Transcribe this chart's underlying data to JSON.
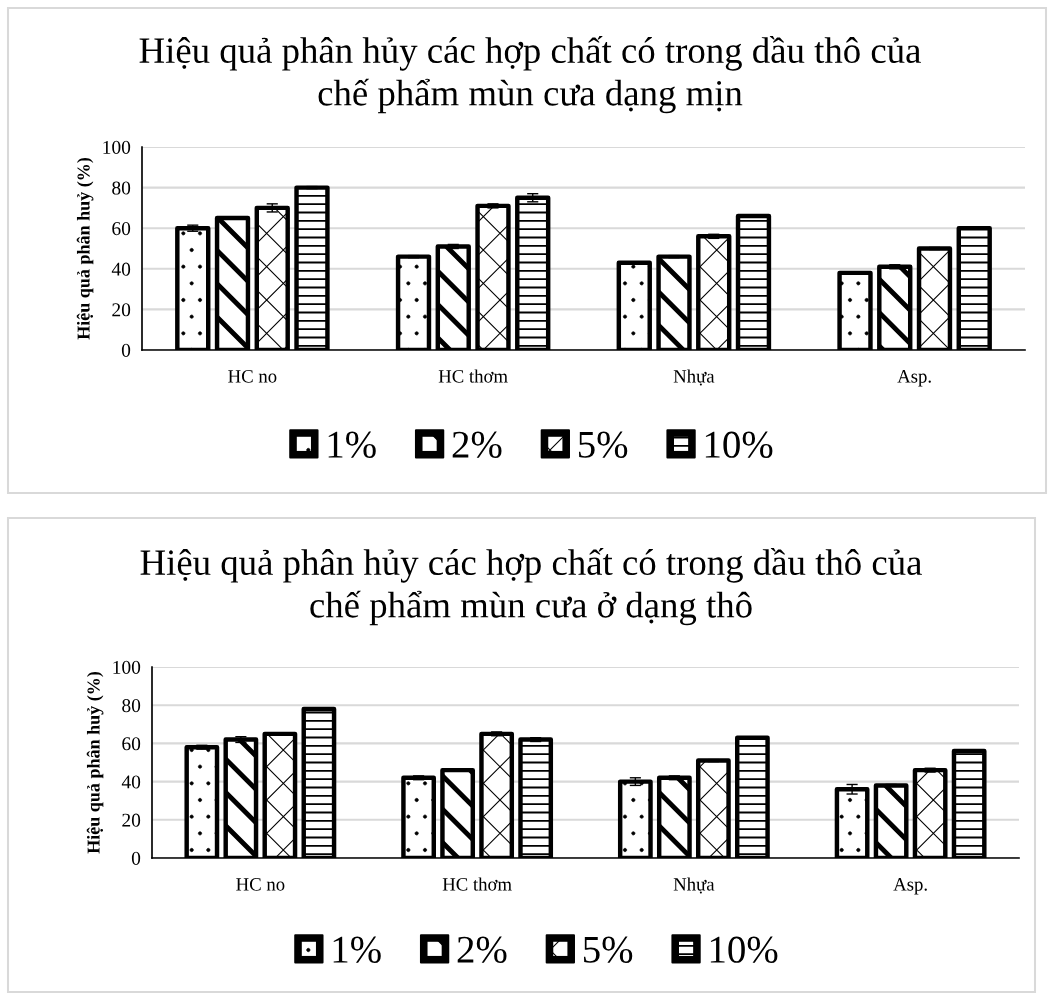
{
  "chart_data": [
    {
      "type": "bar",
      "title": "Hiệu quả phân hủy các hợp chất có trong dầu thô của\nchế phẩm mùn cưa dạng mịn",
      "ylabel": "Hiệu quả phân huỷ (%)",
      "categories": [
        "HC no",
        "HC thơm",
        "Nhựa",
        "Asp."
      ],
      "series": [
        {
          "name": "1%",
          "color": "#000000",
          "values": [
            60,
            46,
            43,
            38
          ],
          "errors": [
            1.5,
            0.5,
            0.5,
            0.5
          ]
        },
        {
          "name": "2%",
          "color": "#000000",
          "values": [
            65,
            51,
            46,
            41
          ],
          "errors": [
            0.5,
            1,
            0.5,
            1
          ]
        },
        {
          "name": "5%",
          "color": "#000000",
          "values": [
            70,
            71,
            56,
            50
          ],
          "errors": [
            2,
            1,
            1,
            0.5
          ]
        },
        {
          "name": "10%",
          "color": "#000000",
          "values": [
            80,
            75,
            66,
            60
          ],
          "errors": [
            0.5,
            2,
            0.5,
            0.5
          ]
        }
      ],
      "ylim": [
        0,
        100
      ],
      "yticks": [
        0,
        20,
        40,
        60,
        80,
        100
      ],
      "grid": "y",
      "legend": "bottom"
    },
    {
      "type": "bar",
      "title": "Hiệu quả phân hủy các hợp chất có trong dầu thô của\nchế phẩm mùn cưa ở dạng thô",
      "ylabel": "Hiệu quả phân huỷ (%)",
      "categories": [
        "HC no",
        "HC thơm",
        "Nhựa",
        "Asp."
      ],
      "series": [
        {
          "name": "1%",
          "color": "#000000",
          "values": [
            58,
            42,
            40,
            36
          ],
          "errors": [
            1,
            1,
            2,
            2.5
          ]
        },
        {
          "name": "2%",
          "color": "#000000",
          "values": [
            62,
            46,
            42,
            38
          ],
          "errors": [
            1.5,
            0.5,
            1,
            0.5
          ]
        },
        {
          "name": "5%",
          "color": "#000000",
          "values": [
            65,
            65,
            51,
            46
          ],
          "errors": [
            0.5,
            1,
            0.5,
            1
          ]
        },
        {
          "name": "10%",
          "color": "#000000",
          "values": [
            78,
            62,
            63,
            56
          ],
          "errors": [
            0.5,
            1,
            0.5,
            0.5
          ]
        }
      ],
      "ylim": [
        0,
        100
      ],
      "yticks": [
        0,
        20,
        40,
        60,
        80,
        100
      ],
      "grid": "y",
      "legend": "bottom"
    }
  ]
}
